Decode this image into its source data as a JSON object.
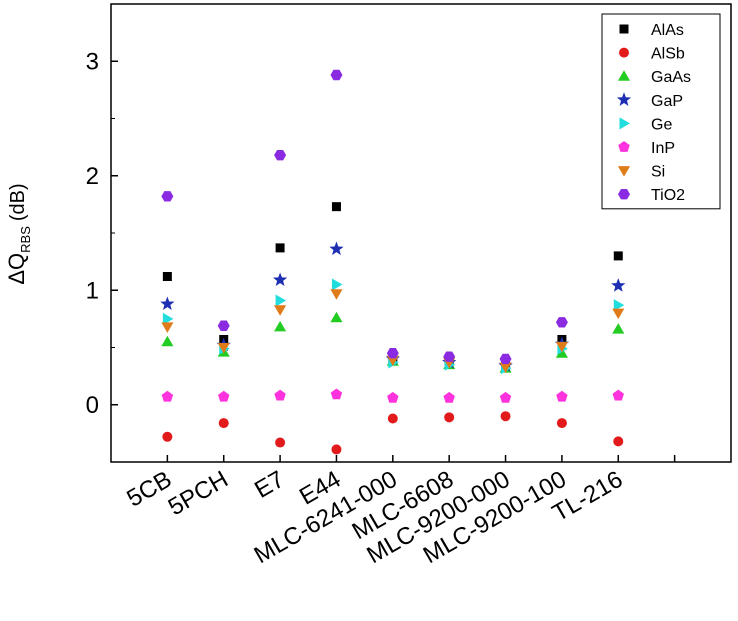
{
  "chart_data": {
    "type": "scatter",
    "title": "",
    "xlabel": "",
    "ylabel": {
      "main": "ΔQ",
      "sub": "RBS",
      "unit": "(dB)"
    },
    "ylim": [
      -0.5,
      3.5
    ],
    "yticks": [
      "0",
      "1",
      "2",
      "3"
    ],
    "ytick_values": [
      0,
      1,
      2,
      3
    ],
    "categories": [
      "5CB",
      "5PCH",
      "E7",
      "E44",
      "MLC-6241-000",
      "MLC-6608",
      "MLC-9200-000",
      "MLC-9200-100",
      "TL-216"
    ],
    "x_slots": 11,
    "grid": false,
    "legend_position": "top-right",
    "series": [
      {
        "name": "AlAs",
        "marker": "square",
        "color": "#000000",
        "values": [
          1.12,
          0.57,
          1.37,
          1.73,
          0.41,
          0.38,
          0.34,
          0.57,
          1.3
        ]
      },
      {
        "name": "AlSb",
        "marker": "circle",
        "color": "#e31a1c",
        "values": [
          -0.28,
          -0.16,
          -0.33,
          -0.39,
          -0.12,
          -0.11,
          -0.1,
          -0.16,
          -0.32
        ]
      },
      {
        "name": "GaAs",
        "marker": "triangle-up",
        "color": "#22cc22",
        "values": [
          0.55,
          0.46,
          0.68,
          0.76,
          0.38,
          0.35,
          0.32,
          0.45,
          0.66
        ]
      },
      {
        "name": "GaP",
        "marker": "star",
        "color": "#1f2fb4",
        "values": [
          0.88,
          0.52,
          1.09,
          1.36,
          0.4,
          0.37,
          0.34,
          0.53,
          1.04
        ]
      },
      {
        "name": "Ge",
        "marker": "triangle-right",
        "color": "#22dddd",
        "values": [
          0.75,
          0.49,
          0.91,
          1.05,
          0.37,
          0.35,
          0.32,
          0.49,
          0.87
        ]
      },
      {
        "name": "InP",
        "marker": "pentagon",
        "color": "#ff33dd",
        "values": [
          0.07,
          0.07,
          0.08,
          0.09,
          0.06,
          0.06,
          0.06,
          0.07,
          0.08
        ]
      },
      {
        "name": "Si",
        "marker": "triangle-down",
        "color": "#e07b1a",
        "values": [
          0.68,
          0.5,
          0.83,
          0.97,
          0.39,
          0.37,
          0.33,
          0.51,
          0.8
        ]
      },
      {
        "name": "TiO2",
        "marker": "hexagon",
        "color": "#8a2be2",
        "values": [
          1.82,
          0.69,
          2.18,
          2.88,
          0.45,
          0.42,
          0.4,
          0.72,
          null
        ]
      }
    ]
  }
}
